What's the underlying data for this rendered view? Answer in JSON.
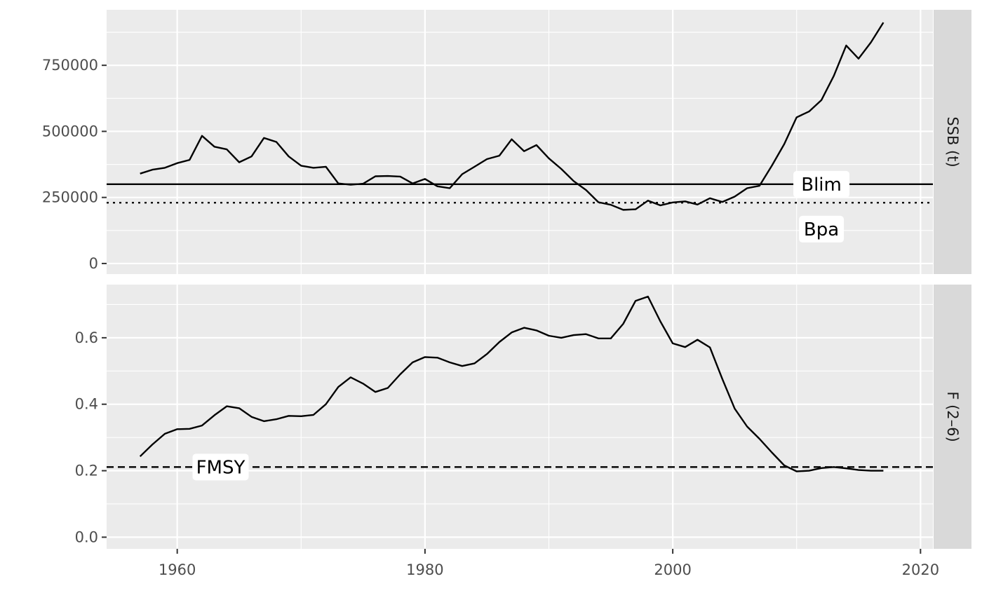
{
  "chart_data": {
    "type": "line",
    "facet_layout": "stacked-vertical-shared-x",
    "xlim": [
      1954.3,
      2021.0
    ],
    "x_ticks": [
      1960,
      1980,
      2000,
      2020
    ],
    "panels": [
      {
        "strip_label": "SSB (t)",
        "ylim": [
          -40000,
          960000
        ],
        "y_ticks": [
          0,
          250000,
          500000,
          750000
        ],
        "y_tick_labels": [
          "0",
          "250000",
          "500000",
          "750000"
        ],
        "series": [
          {
            "x": [
              1957,
              1958,
              1959,
              1960,
              1961,
              1962,
              1963,
              1964,
              1965,
              1966,
              1967,
              1968,
              1969,
              1970,
              1971,
              1972,
              1973,
              1974,
              1975,
              1976,
              1977,
              1978,
              1979,
              1980,
              1981,
              1982,
              1983,
              1984,
              1985,
              1986,
              1987,
              1988,
              1989,
              1990,
              1991,
              1992,
              1993,
              1994,
              1995,
              1996,
              1997,
              1998,
              1999,
              2000,
              2001,
              2002,
              2003,
              2004,
              2005,
              2006,
              2007,
              2008,
              2009,
              2010,
              2011,
              2012,
              2013,
              2014,
              2015,
              2016,
              2017
            ],
            "y": [
              340000,
              355000,
              362000,
              380000,
              392000,
              483000,
              442000,
              432000,
              383000,
              405000,
              475000,
              460000,
              405000,
              370000,
              362000,
              366000,
              303000,
              298000,
              302000,
              330000,
              331000,
              329000,
              303000,
              320000,
              292000,
              285000,
              338000,
              366000,
              395000,
              408000,
              470000,
              425000,
              448000,
              398000,
              358000,
              312000,
              278000,
              232000,
              222000,
              203000,
              205000,
              238000,
              220000,
              231000,
              235000,
              223000,
              247000,
              233000,
              253000,
              285000,
              294000,
              370000,
              452000,
              553000,
              575000,
              618000,
              710000,
              825000,
              775000,
              837000,
              912000
            ]
          }
        ],
        "reference_lines": [
          {
            "label": "Blim",
            "value": 300000,
            "style": "solid",
            "label_x": 2012.0
          },
          {
            "label": "Bpa",
            "value": 230000,
            "style": "dotted",
            "label_x": 2012.0,
            "label_y": 130000
          }
        ]
      },
      {
        "strip_label": "F (2–6)",
        "ylim": [
          -0.035,
          0.76
        ],
        "y_ticks": [
          0.0,
          0.2,
          0.4,
          0.6
        ],
        "y_tick_labels": [
          "0.0",
          "0.2",
          "0.4",
          "0.6"
        ],
        "series": [
          {
            "x": [
              1957,
              1958,
              1959,
              1960,
              1961,
              1962,
              1963,
              1964,
              1965,
              1966,
              1967,
              1968,
              1969,
              1970,
              1971,
              1972,
              1973,
              1974,
              1975,
              1976,
              1977,
              1978,
              1979,
              1980,
              1981,
              1982,
              1983,
              1984,
              1985,
              1986,
              1987,
              1988,
              1989,
              1990,
              1991,
              1992,
              1993,
              1994,
              1995,
              1996,
              1997,
              1998,
              1999,
              2000,
              2001,
              2002,
              2003,
              2004,
              2005,
              2006,
              2007,
              2008,
              2009,
              2010,
              2011,
              2012,
              2013,
              2014,
              2015,
              2016,
              2017
            ],
            "y": [
              0.243,
              0.279,
              0.311,
              0.325,
              0.326,
              0.336,
              0.367,
              0.394,
              0.388,
              0.362,
              0.349,
              0.355,
              0.365,
              0.364,
              0.368,
              0.4,
              0.452,
              0.481,
              0.462,
              0.437,
              0.449,
              0.49,
              0.526,
              0.542,
              0.54,
              0.526,
              0.515,
              0.523,
              0.551,
              0.587,
              0.616,
              0.63,
              0.622,
              0.606,
              0.6,
              0.608,
              0.611,
              0.598,
              0.598,
              0.642,
              0.711,
              0.724,
              0.649,
              0.583,
              0.572,
              0.594,
              0.571,
              0.476,
              0.387,
              0.333,
              0.296,
              0.255,
              0.216,
              0.198,
              0.2,
              0.208,
              0.211,
              0.207,
              0.202,
              0.2,
              0.2
            ]
          }
        ],
        "reference_lines": [
          {
            "label": "FMSY",
            "value": 0.211,
            "style": "dashed",
            "label_x": 1963.5
          }
        ]
      }
    ]
  }
}
